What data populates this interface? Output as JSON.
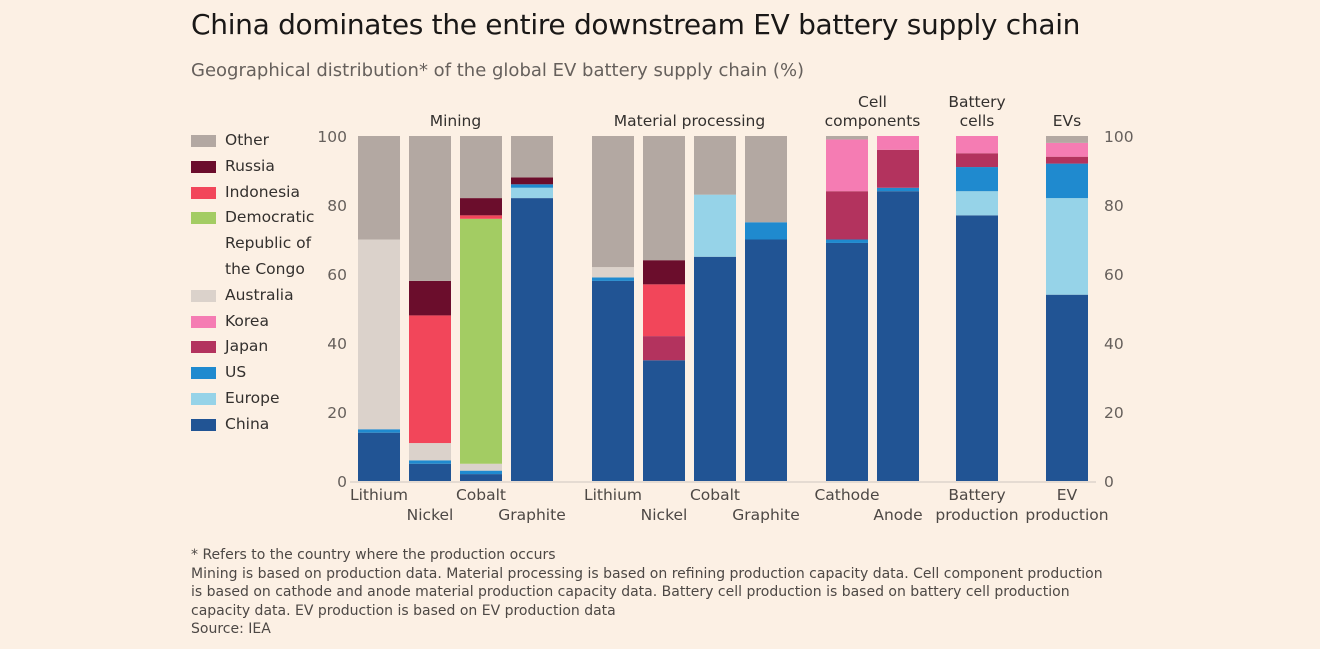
{
  "title": "China dominates the entire downstream EV battery supply chain",
  "subtitle": "Geographical distribution* of the global EV battery supply chain (%)",
  "footnotes": {
    "asterisk": "* Refers to the country where the production occurs",
    "line1": "Mining is based on production data. Material processing is based on refining production capacity data. Cell component production",
    "line2": "is based on cathode and anode material production capacity data. Battery cell production is based on battery cell production",
    "line3": "capacity data. EV production is based on EV production data",
    "source": "Source: IEA"
  },
  "chart_data": {
    "type": "bar",
    "stacked": true,
    "ylim": [
      0,
      100
    ],
    "yticks": [
      0,
      20,
      40,
      60,
      80,
      100
    ],
    "legend_position": "left",
    "legend": [
      {
        "key": "other",
        "label": "Other",
        "color": "#b3a8a2"
      },
      {
        "key": "russia",
        "label": "Russia",
        "color": "#6b0d2c"
      },
      {
        "key": "indonesia",
        "label": "Indonesia",
        "color": "#f2465a"
      },
      {
        "key": "drc",
        "label": "Democratic Republic of the Congo",
        "label_lines": [
          "Democratic",
          "Republic of",
          "the Congo"
        ],
        "color": "#a3cc63"
      },
      {
        "key": "australia",
        "label": "Australia",
        "color": "#dbd2cb"
      },
      {
        "key": "korea",
        "label": "Korea",
        "color": "#f57cb3"
      },
      {
        "key": "japan",
        "label": "Japan",
        "color": "#b3335e"
      },
      {
        "key": "us",
        "label": "US",
        "color": "#1f8acf"
      },
      {
        "key": "europe",
        "label": "Europe",
        "color": "#96d3e8"
      },
      {
        "key": "china",
        "label": "China",
        "color": "#215494"
      }
    ],
    "stack_order": [
      "china",
      "europe",
      "us",
      "japan",
      "korea",
      "australia",
      "drc",
      "indonesia",
      "russia",
      "other"
    ],
    "groups": [
      {
        "label_lines": [
          "Mining"
        ],
        "categories": [
          {
            "label": "Lithium",
            "values": {
              "china": 14,
              "europe": 0,
              "us": 1,
              "japan": 0,
              "korea": 0,
              "australia": 55,
              "drc": 0,
              "indonesia": 0,
              "russia": 0,
              "other": 30
            }
          },
          {
            "label": "Nickel",
            "values": {
              "china": 5,
              "europe": 0,
              "us": 1,
              "japan": 0,
              "korea": 0,
              "australia": 5,
              "drc": 0,
              "indonesia": 37,
              "russia": 10,
              "other": 42
            }
          },
          {
            "label": "Cobalt",
            "values": {
              "china": 2,
              "europe": 0,
              "us": 1,
              "japan": 0,
              "korea": 0,
              "australia": 2,
              "drc": 71,
              "indonesia": 1,
              "russia": 5,
              "other": 18
            }
          },
          {
            "label": "Graphite",
            "values": {
              "china": 82,
              "europe": 3,
              "us": 1,
              "japan": 0,
              "korea": 0,
              "australia": 0,
              "drc": 0,
              "indonesia": 0,
              "russia": 2,
              "other": 12
            }
          }
        ]
      },
      {
        "label_lines": [
          "Material processing"
        ],
        "categories": [
          {
            "label": "Lithium",
            "values": {
              "china": 58,
              "europe": 0,
              "us": 1,
              "japan": 0,
              "korea": 0,
              "australia": 3,
              "drc": 0,
              "indonesia": 0,
              "russia": 0,
              "other": 38
            }
          },
          {
            "label": "Nickel",
            "values": {
              "china": 35,
              "europe": 0,
              "us": 0,
              "japan": 7,
              "korea": 0,
              "australia": 0,
              "drc": 0,
              "indonesia": 15,
              "russia": 7,
              "other": 36
            }
          },
          {
            "label": "Cobalt",
            "values": {
              "china": 65,
              "europe": 18,
              "us": 0,
              "japan": 0,
              "korea": 0,
              "australia": 0,
              "drc": 0,
              "indonesia": 0,
              "russia": 0,
              "other": 17
            }
          },
          {
            "label": "Graphite",
            "values": {
              "china": 70,
              "europe": 0,
              "us": 5,
              "japan": 0,
              "korea": 0,
              "australia": 0,
              "drc": 0,
              "indonesia": 0,
              "russia": 0,
              "other": 25
            }
          }
        ]
      },
      {
        "label_lines": [
          "Cell",
          "components"
        ],
        "categories": [
          {
            "label": "Cathode",
            "values": {
              "china": 69,
              "europe": 0,
              "us": 1,
              "japan": 14,
              "korea": 15,
              "australia": 0,
              "drc": 0,
              "indonesia": 0,
              "russia": 0,
              "other": 1
            }
          },
          {
            "label": "Anode",
            "values": {
              "china": 84,
              "europe": 0,
              "us": 1,
              "japan": 11,
              "korea": 4,
              "australia": 0,
              "drc": 0,
              "indonesia": 0,
              "russia": 0,
              "other": 0
            }
          }
        ]
      },
      {
        "label_lines": [
          "Battery",
          "cells"
        ],
        "categories": [
          {
            "label": "Battery production",
            "values": {
              "china": 77,
              "europe": 7,
              "us": 7,
              "japan": 4,
              "korea": 5,
              "australia": 0,
              "drc": 0,
              "indonesia": 0,
              "russia": 0,
              "other": 0
            }
          }
        ]
      },
      {
        "label_lines": [
          "EVs"
        ],
        "categories": [
          {
            "label": "EV production",
            "values": {
              "china": 54,
              "europe": 28,
              "us": 10,
              "japan": 2,
              "korea": 4,
              "australia": 0,
              "drc": 0,
              "indonesia": 0,
              "russia": 0,
              "other": 2
            }
          }
        ]
      }
    ]
  }
}
